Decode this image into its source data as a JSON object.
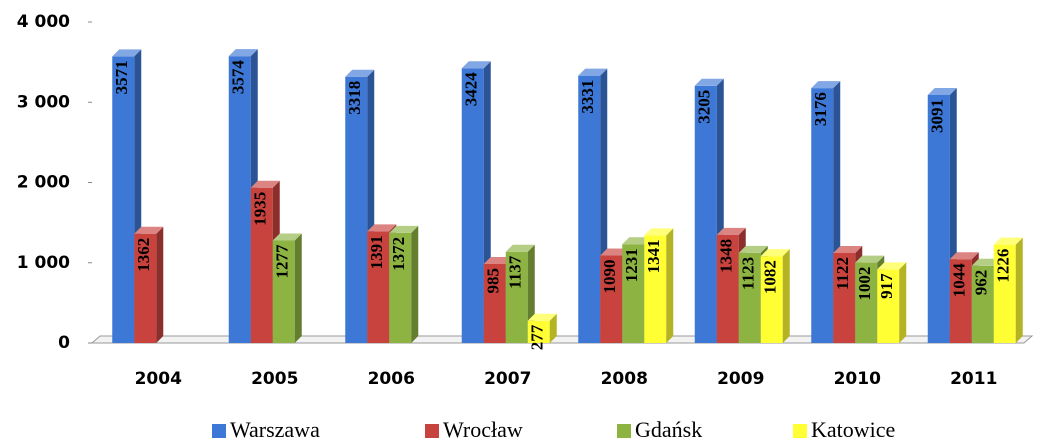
{
  "chart_data": {
    "type": "bar",
    "categories": [
      "2004",
      "2005",
      "2006",
      "2007",
      "2008",
      "2009",
      "2010",
      "2011"
    ],
    "series": [
      {
        "name": "Warszawa",
        "color": "#3d78d6",
        "values": [
          3571,
          3574,
          3318,
          3424,
          3331,
          3205,
          3176,
          3091
        ]
      },
      {
        "name": "Wrocław",
        "color": "#c8423e",
        "values": [
          1362,
          1935,
          1391,
          985,
          1090,
          1348,
          1122,
          1044
        ]
      },
      {
        "name": "Gdańsk",
        "color": "#8db443",
        "values": [
          null,
          1277,
          1372,
          1137,
          1231,
          1123,
          1002,
          962
        ]
      },
      {
        "name": "Katowice",
        "color": "#ffff33",
        "values": [
          null,
          null,
          null,
          277,
          1341,
          1082,
          917,
          1226
        ]
      }
    ],
    "ylim": [
      0,
      4000
    ],
    "yticks": [
      0,
      {
        "value": 1000,
        "label": "1 000"
      },
      {
        "value": 2000,
        "label": "2 000"
      },
      {
        "value": 3000,
        "label": "3 000"
      },
      {
        "value": 4000,
        "label": "4 000"
      }
    ],
    "legend": "bottom"
  }
}
